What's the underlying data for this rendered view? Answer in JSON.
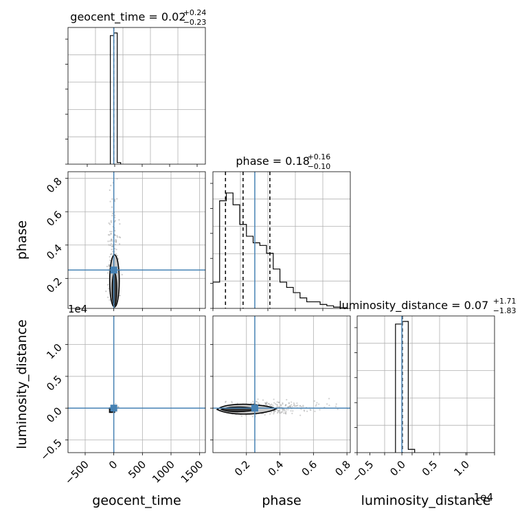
{
  "chart_data": {
    "type": "corner",
    "parameters": [
      "geocent_time",
      "phase",
      "luminosity_distance"
    ],
    "truths": {
      "geocent_time": 0,
      "phase": 0.25,
      "luminosity_distance": 0
    },
    "colors": {
      "truth": "#4682b4",
      "hist": "#000000",
      "grid": "#b0b0b0",
      "points": "#9a9a9a"
    },
    "grid": true,
    "diagonal": [
      {
        "param": "geocent_time",
        "title": "geocent_time = 0.02",
        "title_plus": "+0.24",
        "title_minus": "−0.23",
        "xlim": [
          -800,
          1600
        ],
        "quantiles": [
          0.02
        ],
        "bins": [
          {
            "x0": -60,
            "x1": 0,
            "h": 0.98
          },
          {
            "x0": 0,
            "x1": 60,
            "h": 1.0
          },
          {
            "x0": 60,
            "x1": 120,
            "h": 0.012
          }
        ]
      },
      {
        "param": "phase",
        "title": "phase = 0.18",
        "title_plus": "+0.16",
        "title_minus": "−0.10",
        "xlim": [
          0,
          0.82
        ],
        "quantiles": [
          0.075,
          0.18,
          0.34
        ],
        "bins": [
          {
            "x0": 0.0,
            "x1": 0.04,
            "h": 0.2
          },
          {
            "x0": 0.04,
            "x1": 0.08,
            "h": 0.82
          },
          {
            "x0": 0.08,
            "x1": 0.12,
            "h": 0.88
          },
          {
            "x0": 0.12,
            "x1": 0.16,
            "h": 0.79
          },
          {
            "x0": 0.16,
            "x1": 0.2,
            "h": 0.64
          },
          {
            "x0": 0.2,
            "x1": 0.24,
            "h": 0.55
          },
          {
            "x0": 0.24,
            "x1": 0.28,
            "h": 0.5
          },
          {
            "x0": 0.28,
            "x1": 0.32,
            "h": 0.48
          },
          {
            "x0": 0.32,
            "x1": 0.36,
            "h": 0.42
          },
          {
            "x0": 0.36,
            "x1": 0.4,
            "h": 0.3
          },
          {
            "x0": 0.4,
            "x1": 0.44,
            "h": 0.2
          },
          {
            "x0": 0.44,
            "x1": 0.48,
            "h": 0.16
          },
          {
            "x0": 0.48,
            "x1": 0.52,
            "h": 0.12
          },
          {
            "x0": 0.52,
            "x1": 0.56,
            "h": 0.08
          },
          {
            "x0": 0.56,
            "x1": 0.6,
            "h": 0.05
          },
          {
            "x0": 0.6,
            "x1": 0.64,
            "h": 0.05
          },
          {
            "x0": 0.64,
            "x1": 0.68,
            "h": 0.03
          },
          {
            "x0": 0.68,
            "x1": 0.72,
            "h": 0.02
          },
          {
            "x0": 0.72,
            "x1": 0.76,
            "h": 0.01
          },
          {
            "x0": 0.76,
            "x1": 0.8,
            "h": 0.005
          }
        ]
      },
      {
        "param": "luminosity_distance",
        "title": "luminosity_distance = 0.07",
        "title_plus": "+1.71",
        "title_minus": "−1.83",
        "xlim": [
          -0.7,
          1.45
        ],
        "x_offset_label": "1e4",
        "quantiles": [
          0.007
        ],
        "bins": [
          {
            "x0": -0.1,
            "x1": 0,
            "h": 0.98
          },
          {
            "x0": 0,
            "x1": 0.1,
            "h": 1.0
          },
          {
            "x0": 0.1,
            "x1": 0.2,
            "h": 0.025
          }
        ]
      }
    ],
    "panels": [
      {
        "x": "geocent_time",
        "y": "phase",
        "xlim": [
          -800,
          1600
        ],
        "ylim": [
          0.02,
          0.84
        ],
        "yticks": [
          "0.2",
          "0.4",
          "0.6",
          "0.8"
        ],
        "ytick_values": [
          0.2,
          0.4,
          0.6,
          0.8
        ]
      },
      {
        "x": "geocent_time",
        "y": "luminosity_distance",
        "xlim": [
          -800,
          1600
        ],
        "ylim": [
          -0.7,
          1.45
        ],
        "y_offset_label": "1e4",
        "yticks": [
          "−0.5",
          "0.0",
          "0.5",
          "1.0"
        ],
        "ytick_values": [
          -0.5,
          0,
          0.5,
          1.0
        ],
        "xticks": [
          "−500",
          "0",
          "500",
          "1000",
          "1500"
        ],
        "xtick_values": [
          -500,
          0,
          500,
          1000,
          1500
        ]
      },
      {
        "x": "phase",
        "y": "luminosity_distance",
        "xlim": [
          0,
          0.82
        ],
        "ylim": [
          -0.7,
          1.45
        ],
        "xticks": [
          "0.2",
          "0.4",
          "0.6",
          "0.8"
        ],
        "xtick_values": [
          0.2,
          0.4,
          0.6,
          0.8
        ]
      }
    ],
    "diag_xticks": {
      "luminosity_distance": {
        "labels": [
          "−0.5",
          "0.0",
          "0.5",
          "1.0"
        ],
        "values": [
          -0.5,
          0,
          0.5,
          1.0
        ]
      }
    },
    "xlabels": [
      "geocent_time",
      "phase",
      "luminosity_distance"
    ],
    "ylabels": [
      "phase",
      "luminosity_distance"
    ]
  }
}
